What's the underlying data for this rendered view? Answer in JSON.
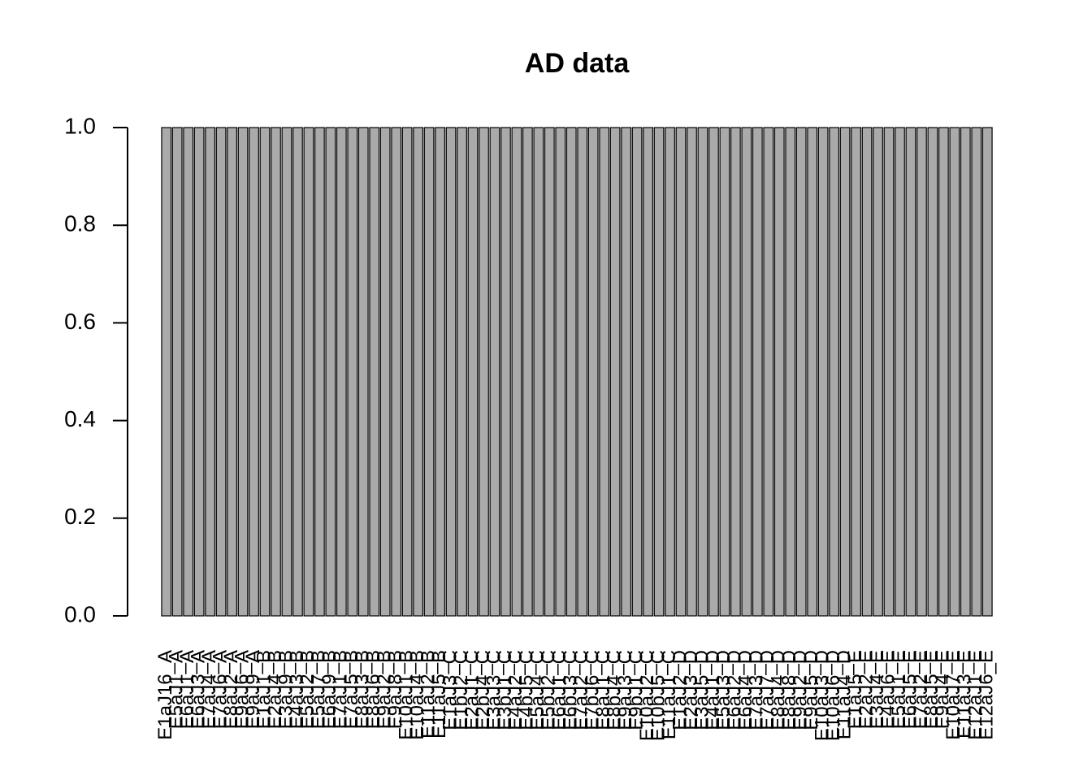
{
  "chart_data": {
    "type": "bar",
    "title": "AD data",
    "categories": [
      "E1aJ16_A",
      "E5aJ1_A",
      "E6aJ1_A",
      "E6aJ3_A",
      "E7aJ4_A",
      "E7aJ6_A",
      "E8aJ2_A",
      "E9aJ6_A",
      "E9aJ9_A",
      "E1aJ1_B",
      "E2aJ4_B",
      "E3aJ9_B",
      "E4aJ3_B",
      "E5aJ2_B",
      "E5aJ7_B",
      "E6aJ9_B",
      "E7aJ1_B",
      "E7aJ5_B",
      "E8aJ3_B",
      "E8aJ6_B",
      "E9aJ2_B",
      "E9aJ8_B",
      "E10aJ1_B",
      "E10aJ4_B",
      "E11aJ2_B",
      "E11aJ5_B",
      "E1aJ3_C",
      "E1bJ2_C",
      "E2aJ1_C",
      "E2bJ4_C",
      "E3aJ3_C",
      "E3bJ1_C",
      "E4aJ2_C",
      "E4bJ5_C",
      "E5aJ4_C",
      "E5bJ2_C",
      "E6aJ1_C",
      "E6bJ3_C",
      "E7aJ2_C",
      "E7bJ6_C",
      "E8aJ1_C",
      "E8bJ4_C",
      "E9aJ3_C",
      "E9bJ1_C",
      "E10aJ2_C",
      "E10bJ5_C",
      "E11aJ1_C",
      "E1aJ2_D",
      "E2aJ3_D",
      "E3aJ5_D",
      "E4aJ1_D",
      "E5aJ3_D",
      "E6aJ2_D",
      "E6aJ4_D",
      "E7aJ3_D",
      "E7aJ7_D",
      "E8aJ4_D",
      "E8aJ8_D",
      "E9aJ2_D",
      "E9aJ5_D",
      "E10aJ3_D",
      "E10aJ6_D",
      "E11aJ4_D",
      "E1aJ5_E",
      "E2aJ2_E",
      "E3aJ4_E",
      "E4aJ6_E",
      "E5aJ1_E",
      "E6aJ5_E",
      "E7aJ2_E",
      "E8aJ5_E",
      "E9aJ4_E",
      "E10aJ7_E",
      "E11aJ3_E",
      "E12aJ1_E",
      "E12aJ6_E"
    ],
    "values": [
      1,
      1,
      1,
      1,
      1,
      1,
      1,
      1,
      1,
      1,
      1,
      1,
      1,
      1,
      1,
      1,
      1,
      1,
      1,
      1,
      1,
      1,
      1,
      1,
      1,
      1,
      1,
      1,
      1,
      1,
      1,
      1,
      1,
      1,
      1,
      1,
      1,
      1,
      1,
      1,
      1,
      1,
      1,
      1,
      1,
      1,
      1,
      1,
      1,
      1,
      1,
      1,
      1,
      1,
      1,
      1,
      1,
      1,
      1,
      1,
      1,
      1,
      1,
      1,
      1,
      1,
      1,
      1,
      1,
      1,
      1,
      1,
      1,
      1,
      1,
      1
    ],
    "color": "#aaaaaa",
    "ylim": [
      0,
      1
    ],
    "yticks": [
      {
        "value": 0,
        "label": "0.0"
      },
      0.2,
      0.4,
      0.6,
      0.8,
      {
        "value": 1,
        "label": "1.0"
      }
    ]
  }
}
